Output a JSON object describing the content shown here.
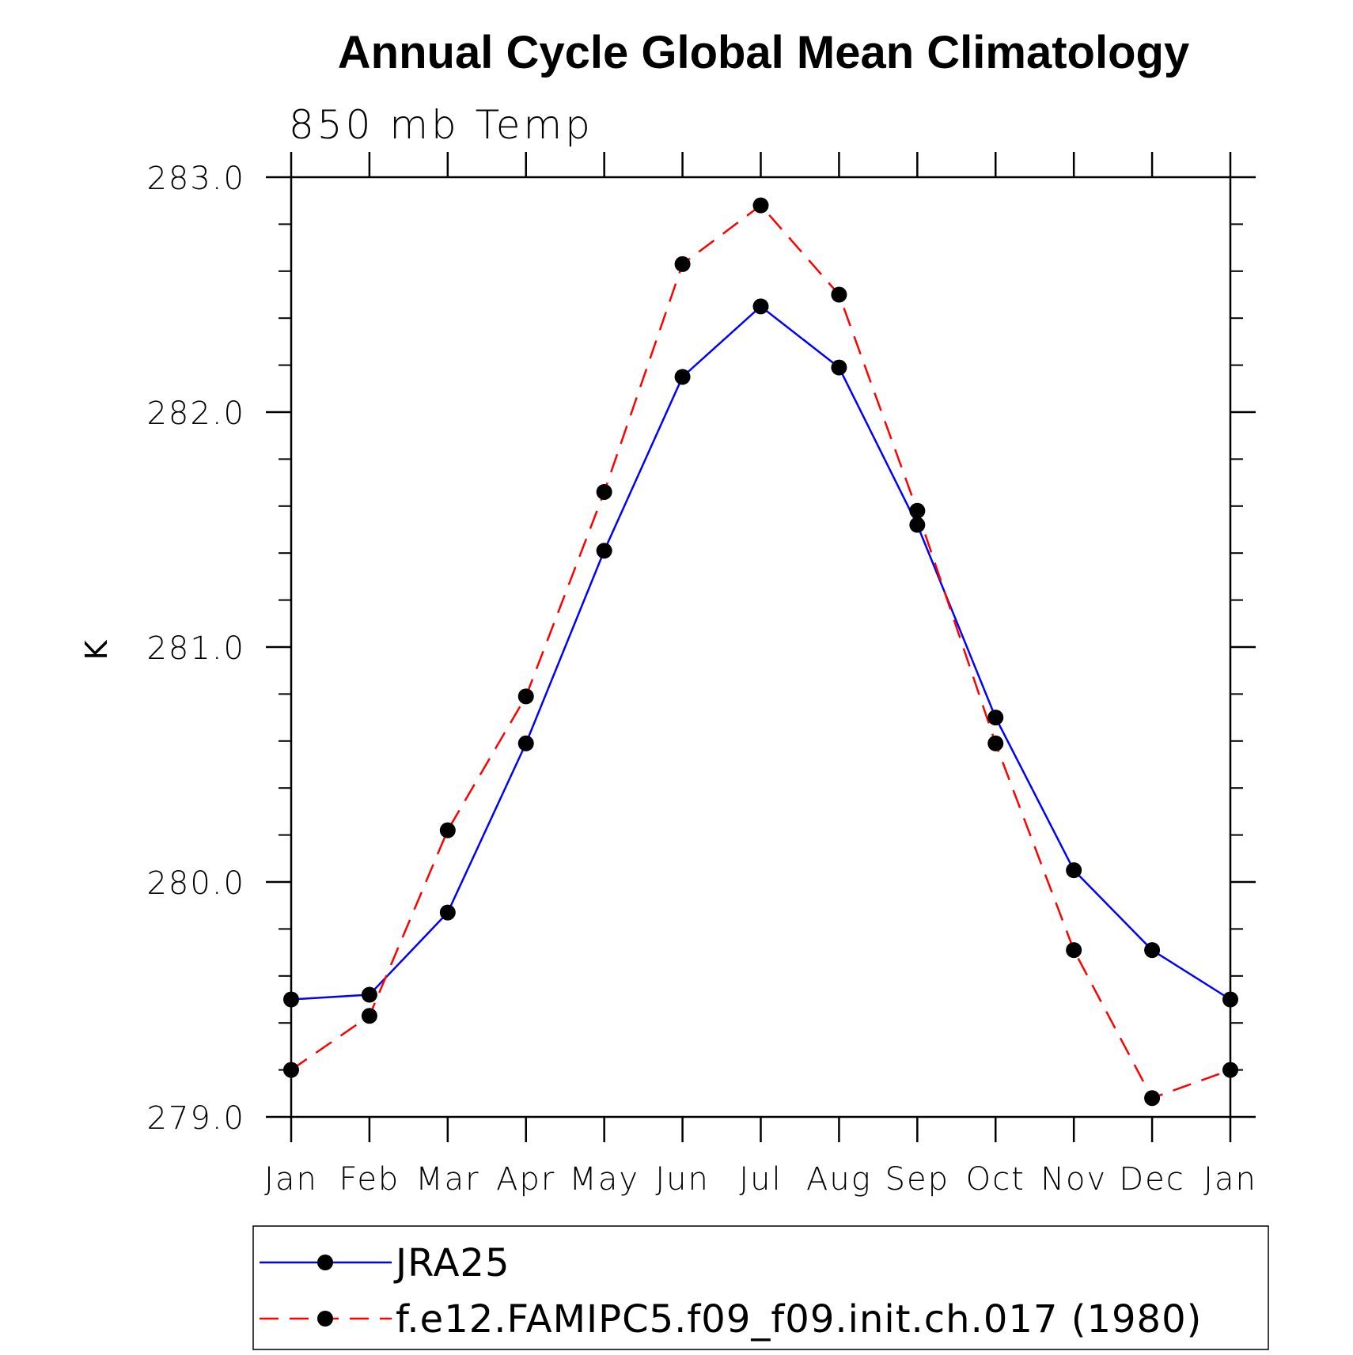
{
  "chart_data": {
    "type": "line",
    "title": "Annual Cycle Global Mean Climatology",
    "subtitle": "850 mb Temp",
    "xlabel": "",
    "ylabel": "K",
    "categories": [
      "Jan",
      "Feb",
      "Mar",
      "Apr",
      "May",
      "Jun",
      "Jul",
      "Aug",
      "Sep",
      "Oct",
      "Nov",
      "Dec",
      "Jan"
    ],
    "ylim": [
      279.0,
      283.0
    ],
    "yticks": [
      "279.0",
      "280.0",
      "281.0",
      "282.0",
      "283.0"
    ],
    "grid": false,
    "legend_position": "bottom",
    "series": [
      {
        "name": "JRA25",
        "color": "#0000ff",
        "line_style": "solid",
        "marker": "filled-circle",
        "values": [
          279.5,
          279.52,
          279.87,
          280.59,
          281.41,
          282.15,
          282.45,
          282.19,
          281.52,
          280.7,
          280.05,
          279.71,
          279.5
        ]
      },
      {
        "name": "f.e12.FAMIPC5.f09_f09.init.ch.017 (1980)",
        "color": "#ff0000",
        "line_style": "dashed",
        "marker": "filled-circle",
        "values": [
          279.2,
          279.43,
          280.22,
          280.79,
          281.66,
          282.63,
          282.88,
          282.5,
          281.58,
          280.59,
          279.71,
          279.08,
          279.2
        ]
      }
    ]
  }
}
